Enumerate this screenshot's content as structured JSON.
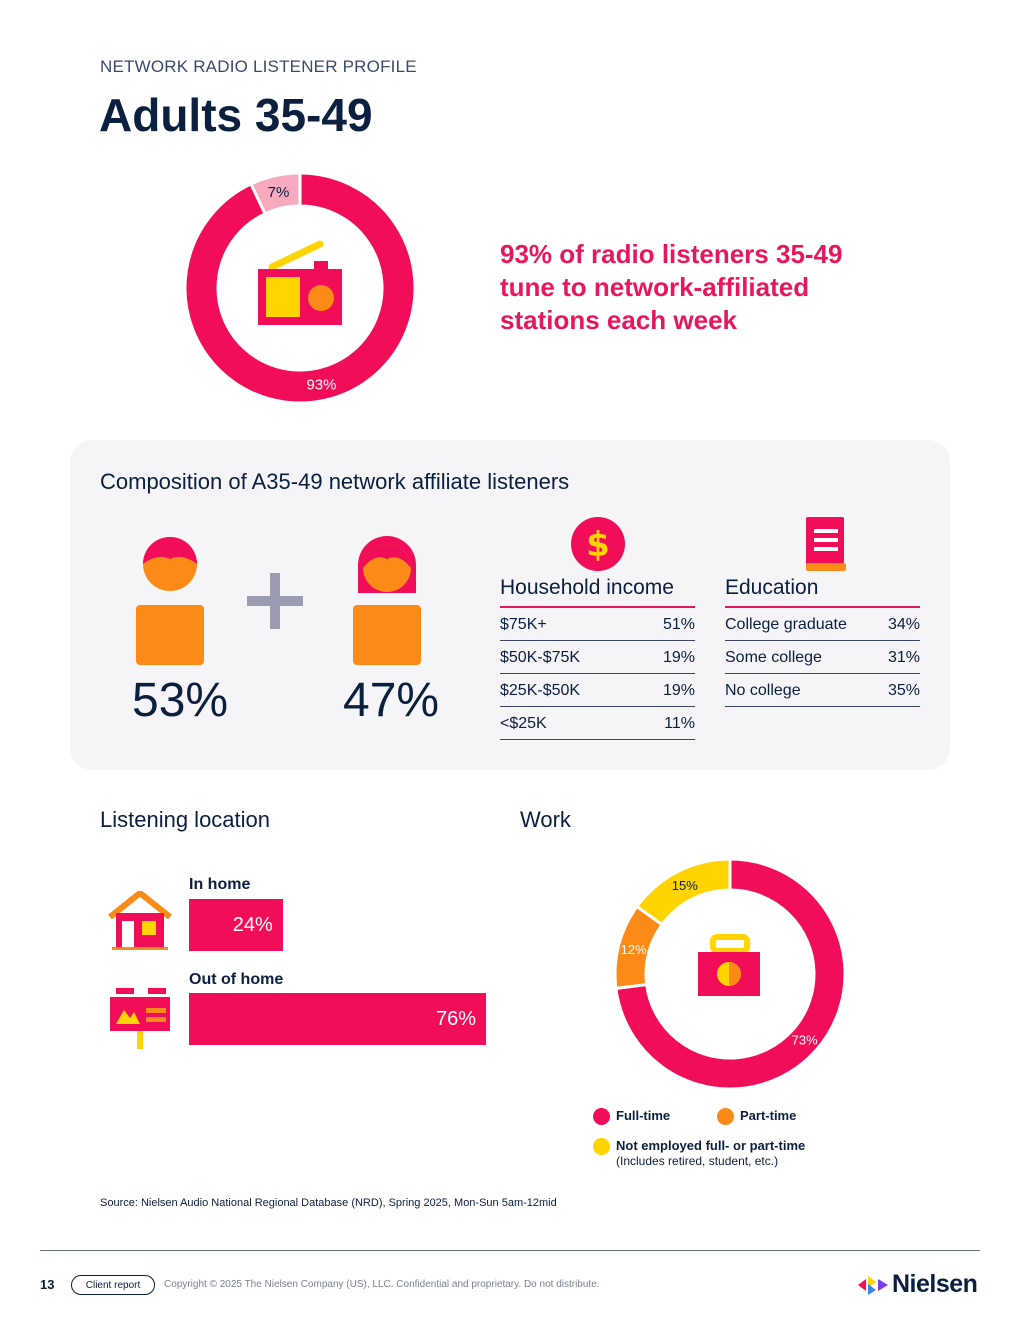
{
  "header": {
    "eyebrow": "NETWORK RADIO LISTENER PROFILE",
    "title": "Adults 35-49"
  },
  "headline": "93% of radio listeners 35-49 tune to network-affiliated stations each week",
  "composition": {
    "title": "Composition of A35-49 network affiliate listeners",
    "male_pct": "53%",
    "female_pct": "47%",
    "income": {
      "title": "Household income",
      "rows": [
        {
          "label": "$75K+",
          "value": "51%"
        },
        {
          "label": "$50K-$75K",
          "value": "19%"
        },
        {
          "label": "$25K-$50K",
          "value": "19%"
        },
        {
          "label": "<$25K",
          "value": "11%"
        }
      ]
    },
    "education": {
      "title": "Education",
      "rows": [
        {
          "label": "College graduate",
          "value": "34%"
        },
        {
          "label": "Some college",
          "value": "31%"
        },
        {
          "label": "No college",
          "value": "35%"
        }
      ]
    }
  },
  "listening": {
    "title": "Listening location",
    "in_home_label": "In home",
    "out_home_label": "Out of home"
  },
  "work": {
    "title": "Work",
    "legend": {
      "full_time": "Full-time",
      "part_time": "Part-time",
      "not_employed": "Not employed full- or part-time",
      "not_employed_note": "(Includes retired, student, etc.)"
    }
  },
  "colors": {
    "brand_pink": "#f10d58",
    "light_pink": "#f7a9bd",
    "orange": "#fb8b16",
    "yellow": "#ffd400",
    "navy": "#0b1f3f"
  },
  "chart_data": [
    {
      "type": "pie",
      "name": "network_affiliate_reach",
      "labels": [
        "7%",
        "93%"
      ],
      "values": [
        7,
        93
      ],
      "colors": [
        "#f7a9bd",
        "#f10d58"
      ]
    },
    {
      "type": "bar",
      "name": "listening_location",
      "categories": [
        "In home",
        "Out of home"
      ],
      "values": [
        24,
        76
      ],
      "labels": [
        "24%",
        "76%"
      ]
    },
    {
      "type": "pie",
      "name": "work",
      "categories": [
        "Full-time",
        "Part-time",
        "Not employed full- or part-time"
      ],
      "values": [
        73,
        12,
        15
      ],
      "labels": [
        "73%",
        "12%",
        "15%"
      ],
      "colors": [
        "#f10d58",
        "#fb8b16",
        "#ffd400"
      ]
    }
  ],
  "footer": {
    "source": "Source: Nielsen Audio National Regional Database (NRD), Spring 2025, Mon-Sun 5am-12mid",
    "page_number": "13",
    "pill": "Client report",
    "copyright": "Copyright © 2025 The Nielsen Company (US), LLC. Confidential and proprietary. Do not distribute.",
    "brand": "Nielsen"
  }
}
